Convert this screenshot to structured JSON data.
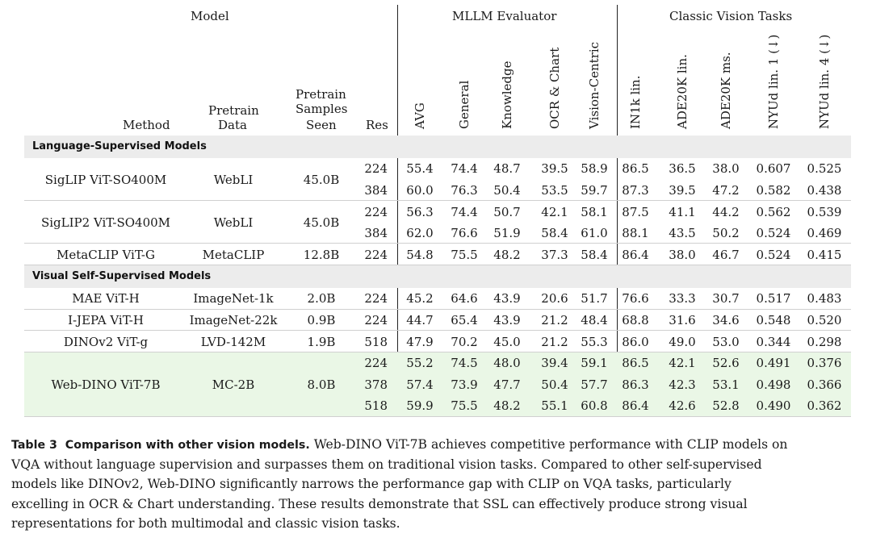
{
  "table": {
    "group_headers": {
      "model": "Model",
      "mllm": "MLLM Evaluator",
      "classic": "Classic Vision Tasks"
    },
    "columns": {
      "method": "Method",
      "pretrain_data": [
        "Pretrain",
        "Data"
      ],
      "samples_seen": [
        "Pretrain",
        "Samples",
        "Seen"
      ],
      "res": "Res",
      "metrics": [
        "AVG",
        "General",
        "Knowledge",
        "OCR & Chart",
        "Vision-Centric",
        "IN1k lin.",
        "ADE20K lin.",
        "ADE20K ms.",
        "NYUd lin. 1 (↓)",
        "NYUd lin. 4 (↓)"
      ]
    },
    "sections": [
      {
        "title": "Language-Supervised Models",
        "models": [
          {
            "method": "SigLIP ViT-SO400M",
            "data": "WebLI",
            "samples": "45.0B",
            "rows": [
              {
                "res": "224",
                "vals": [
                  "55.4",
                  "74.4",
                  "48.7",
                  "39.5",
                  "58.9",
                  "86.5",
                  "36.5",
                  "38.0",
                  "0.607",
                  "0.525"
                ]
              },
              {
                "res": "384",
                "vals": [
                  "60.0",
                  "76.3",
                  "50.4",
                  "53.5",
                  "59.7",
                  "87.3",
                  "39.5",
                  "47.2",
                  "0.582",
                  "0.438"
                ]
              }
            ]
          },
          {
            "method": "SigLIP2 ViT-SO400M",
            "data": "WebLI",
            "samples": "45.0B",
            "rows": [
              {
                "res": "224",
                "vals": [
                  "56.3",
                  "74.4",
                  "50.7",
                  "42.1",
                  "58.1",
                  "87.5",
                  "41.1",
                  "44.2",
                  "0.562",
                  "0.539"
                ]
              },
              {
                "res": "384",
                "vals": [
                  "62.0",
                  "76.6",
                  "51.9",
                  "58.4",
                  "61.0",
                  "88.1",
                  "43.5",
                  "50.2",
                  "0.524",
                  "0.469"
                ]
              }
            ]
          },
          {
            "method": "MetaCLIP ViT-G",
            "data": "MetaCLIP",
            "samples": "12.8B",
            "rows": [
              {
                "res": "224",
                "vals": [
                  "54.8",
                  "75.5",
                  "48.2",
                  "37.3",
                  "58.4",
                  "86.4",
                  "38.0",
                  "46.7",
                  "0.524",
                  "0.415"
                ]
              }
            ]
          }
        ]
      },
      {
        "title": "Visual Self-Supervised Models",
        "models": [
          {
            "method": "MAE ViT-H",
            "data": "ImageNet-1k",
            "samples": "2.0B",
            "rows": [
              {
                "res": "224",
                "vals": [
                  "45.2",
                  "64.6",
                  "43.9",
                  "20.6",
                  "51.7",
                  "76.6",
                  "33.3",
                  "30.7",
                  "0.517",
                  "0.483"
                ]
              }
            ]
          },
          {
            "method": "I-JEPA ViT-H",
            "data": "ImageNet-22k",
            "samples": "0.9B",
            "rows": [
              {
                "res": "224",
                "vals": [
                  "44.7",
                  "65.4",
                  "43.9",
                  "21.2",
                  "48.4",
                  "68.8",
                  "31.6",
                  "34.6",
                  "0.548",
                  "0.520"
                ]
              }
            ]
          },
          {
            "method": "DINOv2 ViT-g",
            "data": "LVD-142M",
            "samples": "1.9B",
            "rows": [
              {
                "res": "518",
                "vals": [
                  "47.9",
                  "70.2",
                  "45.0",
                  "21.2",
                  "55.3",
                  "86.0",
                  "49.0",
                  "53.0",
                  "0.344",
                  "0.298"
                ]
              }
            ]
          },
          {
            "method": "Web-DINO ViT-7B",
            "data": "MC-2B",
            "samples": "8.0B",
            "highlight": true,
            "rows": [
              {
                "res": "224",
                "vals": [
                  "55.2",
                  "74.5",
                  "48.0",
                  "39.4",
                  "59.1",
                  "86.5",
                  "42.1",
                  "52.6",
                  "0.491",
                  "0.376"
                ]
              },
              {
                "res": "378",
                "vals": [
                  "57.4",
                  "73.9",
                  "47.7",
                  "50.4",
                  "57.7",
                  "86.3",
                  "42.3",
                  "53.1",
                  "0.498",
                  "0.366"
                ]
              },
              {
                "res": "518",
                "vals": [
                  "59.9",
                  "75.5",
                  "48.2",
                  "55.1",
                  "60.8",
                  "86.4",
                  "42.6",
                  "52.8",
                  "0.490",
                  "0.362"
                ]
              }
            ]
          }
        ]
      }
    ]
  },
  "caption": {
    "label": "Table 3",
    "lead": "Comparison with other vision models.",
    "lines": [
      "Web-DINO ViT-7B achieves competitive performance with CLIP models on",
      "VQA without language supervision and surpasses them on traditional vision tasks. Compared to other self-supervised",
      "models like DINOv2, Web-DINO significantly narrows the performance gap with CLIP on VQA tasks, particularly",
      "excelling in OCR & Chart understanding. These results demonstrate that SSL can effectively produce strong visual",
      "representations for both multimodal and classic vision tasks."
    ]
  },
  "colors": {
    "section_band": "#ececec",
    "highlight_band": "#eaf7e6",
    "rule": "#222222"
  }
}
